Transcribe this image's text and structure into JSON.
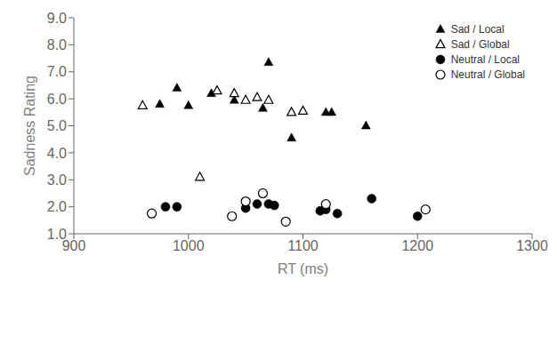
{
  "chart_data": {
    "type": "scatter",
    "xlabel": "RT (ms)",
    "ylabel": "Sadness Rating",
    "xlim": [
      900,
      1300
    ],
    "ylim": [
      1.0,
      9.0
    ],
    "xticks": [
      900,
      1000,
      1100,
      1200,
      1300
    ],
    "yticks": [
      {
        "value": 1.0,
        "label": "1.0"
      },
      {
        "value": 2.0,
        "label": "2.0"
      },
      {
        "value": 3.0,
        "label": "3.0"
      },
      {
        "value": 4.0,
        "label": "4.0"
      },
      {
        "value": 5.0,
        "label": "5.0"
      },
      {
        "value": 6.0,
        "label": "6.0"
      },
      {
        "value": 7.0,
        "label": "7.0"
      },
      {
        "value": 8.0,
        "label": "8.0"
      },
      {
        "value": 9.0,
        "label": "9.0"
      }
    ],
    "grid": false,
    "legend": "upper right",
    "series": [
      {
        "name": "Sad / Local",
        "color": "#000000",
        "marker": "triangle-filled",
        "x": [
          975,
          990,
          1000,
          1020,
          1040,
          1065,
          1070,
          1090,
          1120,
          1125,
          1155
        ],
        "values": [
          5.8,
          6.4,
          5.75,
          6.2,
          5.95,
          5.65,
          7.35,
          4.55,
          5.5,
          5.5,
          5.0
        ]
      },
      {
        "name": "Sad / Global",
        "color": "#000000",
        "marker": "triangle-open",
        "x": [
          960,
          1010,
          1025,
          1040,
          1050,
          1060,
          1070,
          1090,
          1100
        ],
        "values": [
          5.75,
          3.1,
          6.3,
          6.2,
          5.95,
          6.05,
          5.95,
          5.5,
          5.55
        ]
      },
      {
        "name": "Neutral / Local",
        "color": "#000000",
        "marker": "circle-filled",
        "x": [
          980,
          990,
          1050,
          1060,
          1070,
          1075,
          1115,
          1120,
          1130,
          1160,
          1200
        ],
        "values": [
          2.0,
          2.0,
          1.95,
          2.1,
          2.1,
          2.05,
          1.85,
          1.9,
          1.75,
          2.3,
          1.65
        ]
      },
      {
        "name": "Neutral / Global",
        "color": "#000000",
        "marker": "circle-open",
        "x": [
          968,
          1038,
          1050,
          1065,
          1085,
          1120,
          1207
        ],
        "values": [
          1.75,
          1.65,
          2.2,
          2.5,
          1.45,
          2.1,
          1.9
        ]
      }
    ]
  }
}
